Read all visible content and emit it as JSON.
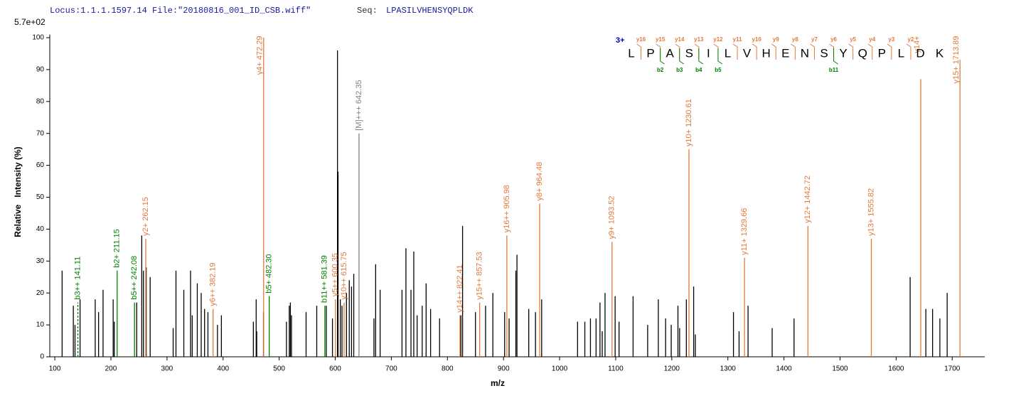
{
  "header": {
    "locus": "Locus:1.1.1.1597.14 File:\"20180816_001_ID_CSB.wiff\"",
    "seq_label": "Seq:",
    "seq": "LPASILVHENSYQPLDK"
  },
  "chart_data": {
    "type": "stem",
    "scale_label": "5.7e+02",
    "x_label": "m/z",
    "y_label": "Relative   Intensity (%)",
    "xlim": [
      91,
      1758
    ],
    "ylim": [
      0,
      101
    ],
    "xticks": [
      100,
      200,
      300,
      400,
      500,
      600,
      700,
      800,
      900,
      1000,
      1100,
      1200,
      1300,
      1400,
      1500,
      1600,
      1700
    ],
    "yticks": [
      0,
      10,
      20,
      30,
      40,
      50,
      60,
      70,
      80,
      90,
      100
    ],
    "color": "#000000",
    "x": [
      113,
      133,
      136,
      145,
      172,
      178,
      186,
      204,
      206,
      246,
      255,
      258,
      263,
      270,
      311,
      316,
      330,
      342,
      345,
      354,
      361,
      367,
      373,
      390,
      397,
      454,
      459,
      460,
      472,
      513,
      518,
      520,
      522,
      548,
      567,
      584,
      595,
      604,
      605,
      609,
      612,
      620,
      625,
      629,
      633,
      669,
      672,
      680,
      719,
      726,
      735,
      740,
      746,
      755,
      762,
      770,
      786,
      824,
      827,
      850,
      868,
      881,
      902,
      910,
      922,
      924,
      945,
      957,
      968,
      1032,
      1045,
      1055,
      1065,
      1072,
      1076,
      1081,
      1099,
      1106,
      1131,
      1157,
      1176,
      1189,
      1199,
      1211,
      1214,
      1226,
      1239,
      1242,
      1310,
      1320,
      1336,
      1379,
      1418,
      1625,
      1653,
      1665,
      1678,
      1691
    ],
    "values": [
      27,
      16,
      10,
      18,
      18,
      14,
      21,
      18,
      11,
      17,
      38,
      27,
      28,
      25,
      9,
      27,
      21,
      27,
      13,
      23,
      20,
      15,
      14,
      10,
      13,
      11,
      18,
      8,
      14,
      11,
      16,
      17,
      13,
      14,
      16,
      16,
      12,
      96,
      58,
      18,
      16,
      20,
      24,
      22,
      26,
      12,
      29,
      21,
      21,
      34,
      21,
      33,
      13,
      16,
      23,
      15,
      12,
      13,
      41,
      14,
      16,
      20,
      14,
      12,
      27,
      32,
      15,
      14,
      18,
      11,
      11,
      12,
      12,
      17,
      8,
      20,
      19,
      11,
      19,
      10,
      18,
      12,
      10,
      16,
      9,
      18,
      22,
      7,
      14,
      8,
      16,
      9,
      12,
      25,
      15,
      15,
      12,
      20
    ],
    "annotations": [
      {
        "x": 141.11,
        "value": 17,
        "label": "b3++ 141.11",
        "color": "#008000",
        "dashed": true
      },
      {
        "x": 211.15,
        "value": 27,
        "label": "b2+ 211.15",
        "color": "#008000"
      },
      {
        "x": 242.08,
        "value": 17,
        "label": "b5++ 242.08",
        "color": "#008000"
      },
      {
        "x": 262.15,
        "value": 37,
        "label": "y2+ 262.15",
        "color": "#e07a3c"
      },
      {
        "x": 382.19,
        "value": 15,
        "label": "y6++ 382.19",
        "color": "#e07a3c"
      },
      {
        "x": 472.29,
        "value": 100,
        "label": "y4+ 472.29",
        "color": "#e07a3c"
      },
      {
        "x": 482.3,
        "value": 19,
        "label": "b5+ 482.30",
        "color": "#008000"
      },
      {
        "x": 581.39,
        "value": 16,
        "label": "b11++ 581.39",
        "color": "#008000"
      },
      {
        "x": 600.35,
        "value": 18,
        "label": "y5++ 600.35",
        "color": "#e07a3c"
      },
      {
        "x": 615.75,
        "value": 17,
        "label": "y10++ 615.75",
        "color": "#e07a3c"
      },
      {
        "x": 642.35,
        "value": 70,
        "label": "[M]+++ 642.35",
        "color": "#808080"
      },
      {
        "x": 822.41,
        "value": 13,
        "label": "y14++ 822.41",
        "color": "#e07a3c"
      },
      {
        "x": 857.53,
        "value": 17,
        "label": "y15++ 857.53",
        "color": "#e07a3c"
      },
      {
        "x": 905.98,
        "value": 38,
        "label": "y16++ 905.98",
        "color": "#e07a3c"
      },
      {
        "x": 964.48,
        "value": 48,
        "label": "y8+ 964.48",
        "color": "#e07a3c"
      },
      {
        "x": 1093.52,
        "value": 36,
        "label": "y9+ 1093.52",
        "color": "#e07a3c"
      },
      {
        "x": 1230.61,
        "value": 65,
        "label": "y10+ 1230.61",
        "color": "#e07a3c"
      },
      {
        "x": 1329.66,
        "value": 31,
        "label": "y11+ 1329.66",
        "color": "#e07a3c"
      },
      {
        "x": 1442.72,
        "value": 41,
        "label": "y12+ 1442.72",
        "color": "#e07a3c"
      },
      {
        "x": 1555.82,
        "value": 37,
        "label": "y13+ 1555.82",
        "color": "#e07a3c"
      },
      {
        "x": 1643.85,
        "value": 87,
        "label": "y14+",
        "color": "#e07a3c"
      },
      {
        "x": 1713.89,
        "value": 93,
        "label": "y15+ 1713.89",
        "color": "#e07a3c"
      }
    ],
    "sequence": {
      "charge": "3+",
      "residues": [
        "L",
        "P",
        "A",
        "S",
        "I",
        "L",
        "V",
        "H",
        "E",
        "N",
        "S",
        "Y",
        "Q",
        "P",
        "L",
        "D",
        "K"
      ],
      "y_ions": [
        "y16",
        "y15",
        "y14",
        "y13",
        "y12",
        "y11",
        "y10",
        "y9",
        "y8",
        "y7",
        "y6",
        "y5",
        "y4",
        "y3",
        "y2",
        null
      ],
      "b_ions": [
        null,
        "b2",
        "b3",
        "b4",
        "b5",
        null,
        null,
        null,
        null,
        null,
        "b11",
        null,
        null,
        null,
        null,
        null
      ]
    }
  }
}
